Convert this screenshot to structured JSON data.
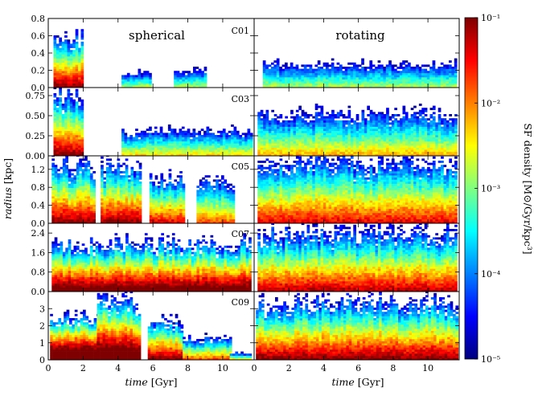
{
  "chart_data": {
    "type": "heatmap",
    "column_titles": [
      "spherical",
      "rotating"
    ],
    "row_panels": [
      {
        "id": "C01",
        "ylim": [
          0,
          0.8
        ],
        "yticks": [
          0.0,
          0.2,
          0.4,
          0.6,
          0.8
        ],
        "spherical": {
          "bursts": [
            [
              0.3,
              2.0,
              0.62,
              0.0
            ],
            [
              4.2,
              5.8,
              0.18,
              0.45
            ],
            [
              7.2,
              9.0,
              0.2,
              0.45
            ]
          ]
        },
        "rotating": {
          "bursts": [
            [
              0.5,
              11.6,
              0.28,
              0.45
            ]
          ]
        }
      },
      {
        "id": "C03",
        "ylim": [
          0,
          0.85
        ],
        "yticks": [
          0.0,
          0.25,
          0.5,
          0.75
        ],
        "spherical": {
          "bursts": [
            [
              0.3,
              2.0,
              0.8,
              0.0
            ],
            [
              4.2,
              11.6,
              0.32,
              0.35
            ]
          ]
        },
        "rotating": {
          "bursts": [
            [
              0.2,
              11.6,
              0.55,
              0.3
            ]
          ]
        }
      },
      {
        "id": "C05",
        "ylim": [
          0,
          1.5
        ],
        "yticks": [
          0.0,
          0.4,
          0.8,
          1.2
        ],
        "spherical": {
          "bursts": [
            [
              0.2,
              2.6,
              1.35,
              0.0
            ],
            [
              3.0,
              5.3,
              1.3,
              0.0
            ],
            [
              5.8,
              7.7,
              1.05,
              0.1
            ],
            [
              8.5,
              10.6,
              1.0,
              0.2
            ]
          ]
        },
        "rotating": {
          "bursts": [
            [
              0.2,
              11.6,
              1.45,
              0.1
            ]
          ]
        }
      },
      {
        "id": "C07",
        "ylim": [
          0,
          2.8
        ],
        "yticks": [
          0.0,
          0.8,
          1.6,
          2.4
        ],
        "spherical": {
          "bursts": [
            [
              0.2,
              11.6,
              2.1,
              -0.1
            ]
          ]
        },
        "rotating": {
          "bursts": [
            [
              0.2,
              11.6,
              2.55,
              0.05
            ]
          ]
        }
      },
      {
        "id": "C09",
        "ylim": [
          0,
          4.0
        ],
        "yticks": [
          0,
          1,
          2,
          3
        ],
        "spherical": {
          "bursts": [
            [
              0.1,
              2.8,
              2.6,
              -0.3
            ],
            [
              2.8,
              5.2,
              3.7,
              -0.2
            ],
            [
              5.7,
              7.6,
              2.4,
              0.0
            ],
            [
              7.7,
              10.4,
              1.3,
              0.2
            ],
            [
              10.4,
              11.6,
              0.4,
              0.4
            ]
          ]
        },
        "rotating": {
          "bursts": [
            [
              0.1,
              11.6,
              3.6,
              0.0
            ]
          ]
        }
      }
    ],
    "xlim": [
      0,
      11.8
    ],
    "xticks": [
      0,
      2,
      4,
      6,
      8,
      10
    ],
    "xlabel_italic": "time",
    "xlabel_unit": " [Gyr]",
    "ylabel_italic": "radius",
    "ylabel_unit": " [kpc]",
    "colorbar": {
      "label": "SF density [M⊙/Gyr/kpc³]",
      "scale": "log",
      "ticks": [
        "10⁻¹",
        "10⁻²",
        "10⁻³",
        "10⁻⁴",
        "10⁻⁵"
      ],
      "colormap": [
        "#7f0000",
        "#ff0000",
        "#ff8000",
        "#ffff00",
        "#80ff80",
        "#00ffff",
        "#0080ff",
        "#0000ff",
        "#00007f"
      ]
    }
  }
}
